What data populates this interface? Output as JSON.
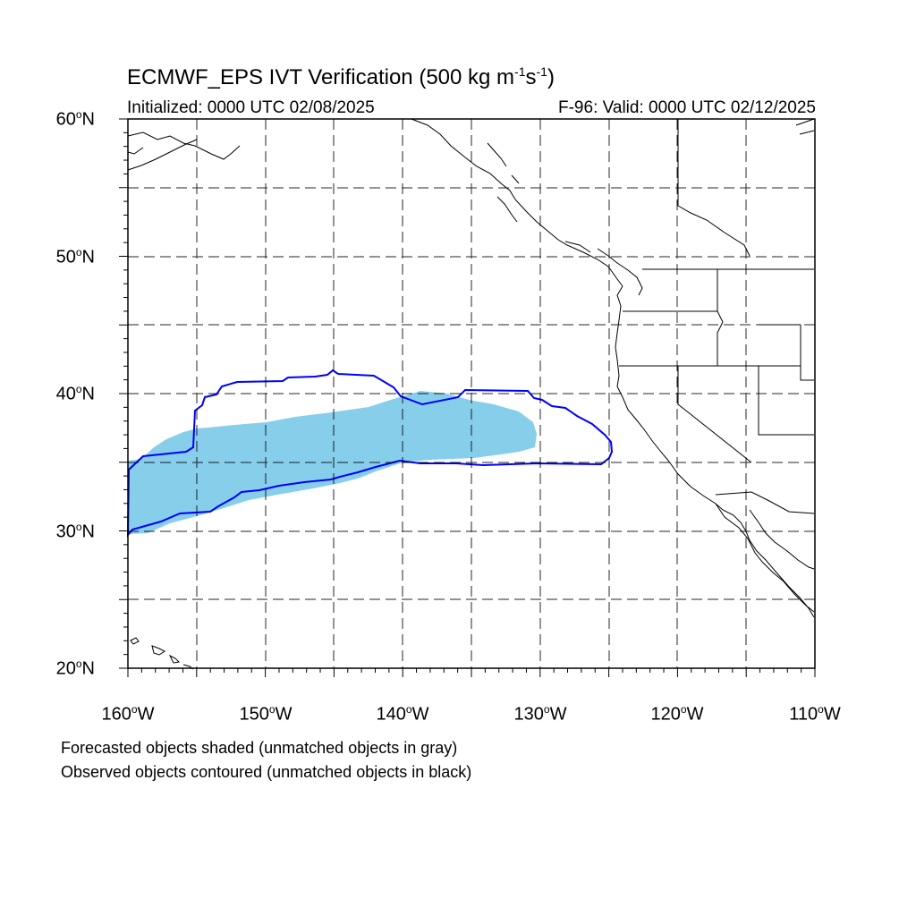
{
  "title_main": "ECMWF_EPS IVT Verification (500 kg m",
  "title_exp1": "-1",
  "title_mid": "s",
  "title_exp2": "-1",
  "title_end": ")",
  "initialized": "Initialized: 0000 UTC 02/08/2025",
  "valid": "F-96: Valid: 0000 UTC 02/12/2025",
  "lat_labels": [
    {
      "num": "60",
      "sup": "o",
      "hem": "N"
    },
    {
      "num": "50",
      "sup": "o",
      "hem": "N"
    },
    {
      "num": "40",
      "sup": "o",
      "hem": "N"
    },
    {
      "num": "30",
      "sup": "o",
      "hem": "N"
    },
    {
      "num": "20",
      "sup": "o",
      "hem": "N"
    }
  ],
  "lon_labels": [
    {
      "num": "160",
      "sup": "o",
      "hem": "W"
    },
    {
      "num": "150",
      "sup": "o",
      "hem": "W"
    },
    {
      "num": "140",
      "sup": "o",
      "hem": "W"
    },
    {
      "num": "130",
      "sup": "o",
      "hem": "W"
    },
    {
      "num": "120",
      "sup": "o",
      "hem": "W"
    },
    {
      "num": "110",
      "sup": "o",
      "hem": "W"
    }
  ],
  "note_forecast": "Forecasted objects shaded (unmatched objects in gray)",
  "note_observed": "Observed objects contoured (unmatched objects in black)",
  "colors": {
    "forecast_fill": "#87ceeb",
    "observed_contour": "#0000ff",
    "coastline": "#000000",
    "grid": "#000000"
  },
  "map_extent": {
    "lon_min": -160,
    "lon_max": -110,
    "lat_min": 20,
    "lat_max": 60
  }
}
